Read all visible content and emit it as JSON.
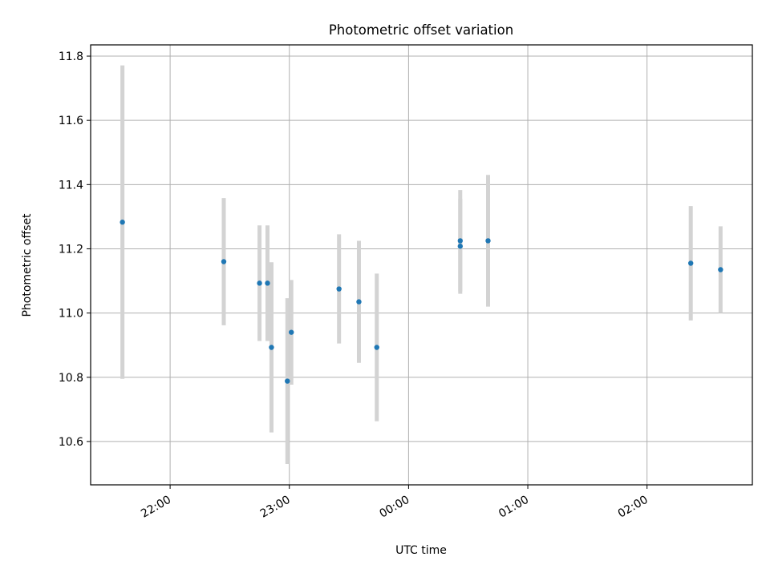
{
  "chart_data": {
    "type": "scatter",
    "title": "Photometric offset variation",
    "xlabel": "UTC time",
    "ylabel": "Photometric offset",
    "x_axis_type": "time",
    "xlim": [
      "21:20",
      "02:53"
    ],
    "ylim": [
      10.465,
      11.835
    ],
    "grid": true,
    "x_ticks": [
      "22:00",
      "23:00",
      "00:00",
      "01:00",
      "02:00"
    ],
    "y_ticks": [
      10.6,
      10.8,
      11.0,
      11.2,
      11.4,
      11.6,
      11.8
    ],
    "y_tick_labels": [
      "10.6",
      "10.8",
      "11.0",
      "11.2",
      "11.4",
      "11.6",
      "11.8"
    ],
    "series": [
      {
        "marker_color": "#1f77b4",
        "errorbar_color": "#d3d3d3",
        "points": [
          {
            "time": "21:36",
            "y": 11.283,
            "err": 0.488
          },
          {
            "time": "22:27",
            "y": 11.16,
            "err": 0.198
          },
          {
            "time": "22:45",
            "y": 11.093,
            "err": 0.18
          },
          {
            "time": "22:49",
            "y": 11.093,
            "err": 0.18
          },
          {
            "time": "22:51",
            "y": 10.893,
            "err": 0.265
          },
          {
            "time": "22:59",
            "y": 10.788,
            "err": 0.258
          },
          {
            "time": "23:01",
            "y": 10.94,
            "err": 0.163
          },
          {
            "time": "23:25",
            "y": 11.075,
            "err": 0.17
          },
          {
            "time": "23:35",
            "y": 11.035,
            "err": 0.19
          },
          {
            "time": "23:44",
            "y": 10.893,
            "err": 0.23
          },
          {
            "time": "00:26",
            "y": 11.208,
            "err": 0.148
          },
          {
            "time": "00:26",
            "y": 11.225,
            "err": 0.158
          },
          {
            "time": "00:40",
            "y": 11.225,
            "err": 0.205
          },
          {
            "time": "02:22",
            "y": 11.155,
            "err": 0.178
          },
          {
            "time": "02:37",
            "y": 11.135,
            "err": 0.135
          }
        ]
      }
    ]
  }
}
